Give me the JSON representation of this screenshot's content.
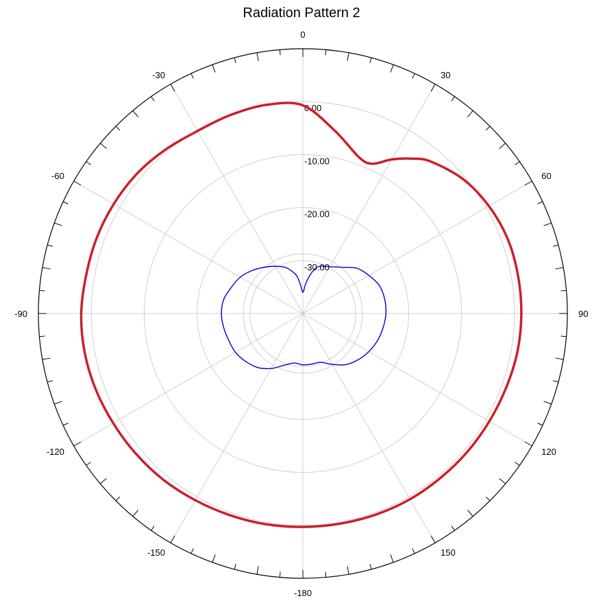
{
  "chart_data": {
    "type": "polar-line",
    "title": "Radiation Pattern 2",
    "angle_tick_labels": [
      "0",
      "30",
      "60",
      "90",
      "120",
      "150",
      "-180",
      "-150",
      "-120",
      "-90",
      "-60",
      "-30"
    ],
    "radial_axis": {
      "min": -40,
      "max": 10,
      "ring_values": [
        -30,
        -20,
        -10,
        0
      ],
      "ring_labels": [
        "-30.00",
        "-20.00",
        "-10.00",
        "0.00"
      ]
    },
    "grid": true,
    "series": [
      {
        "color": "#cc1f29",
        "angle": [
          0,
          10,
          20,
          25,
          30,
          35,
          40,
          50,
          60,
          70,
          80,
          90,
          100,
          110,
          120,
          130,
          140,
          150,
          160,
          170,
          180,
          -170,
          -160,
          -150,
          -140,
          -130,
          -120,
          -110,
          -100,
          -90,
          -80,
          -70,
          -60,
          -50,
          -40,
          -30,
          -20,
          -10
        ],
        "value": [
          -0.7,
          -5.0,
          -8.7,
          -8.8,
          -6.4,
          -4.3,
          -2.5,
          -0.5,
          0.6,
          1.2,
          1.3,
          1.3,
          1.2,
          0.9,
          0.7,
          0.6,
          0.5,
          0.5,
          0.4,
          0.3,
          0.3,
          0.4,
          0.5,
          0.7,
          1.0,
          1.2,
          1.4,
          1.7,
          1.9,
          1.9,
          1.6,
          1.5,
          1.3,
          1.0,
          0.4,
          -0.2,
          -0.1,
          0.0
        ]
      },
      {
        "color": "#0000cc",
        "angle": [
          0,
          5,
          10,
          15,
          20,
          30,
          40,
          50,
          60,
          70,
          80,
          90,
          100,
          110,
          120,
          130,
          140,
          150,
          160,
          170,
          180,
          -170,
          -160,
          -150,
          -140,
          -130,
          -120,
          -110,
          -100,
          -90,
          -80,
          -70,
          -60,
          -50,
          -40,
          -30,
          -20,
          -10,
          -5
        ],
        "value": [
          -36.0,
          -34.5,
          -32.8,
          -31.3,
          -30.5,
          -29.8,
          -28.6,
          -26.7,
          -25.6,
          -24.6,
          -24.3,
          -24.3,
          -24.6,
          -25.0,
          -25.6,
          -26.4,
          -27.4,
          -28.9,
          -30.2,
          -30.3,
          -30.3,
          -30.5,
          -29.6,
          -28.0,
          -26.7,
          -25.9,
          -25.3,
          -25.1,
          -24.8,
          -24.6,
          -24.8,
          -25.6,
          -26.3,
          -27.4,
          -28.6,
          -29.7,
          -30.8,
          -32.6,
          -34.5
        ]
      }
    ]
  }
}
